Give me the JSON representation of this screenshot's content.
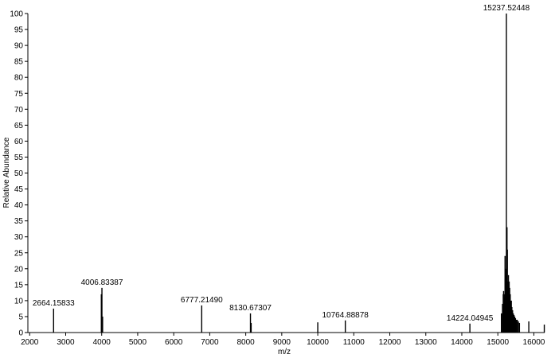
{
  "chart_data": {
    "type": "bar",
    "title": "",
    "xlabel": "m/z",
    "ylabel": "Relative Abundance",
    "xlim": [
      1950,
      16300
    ],
    "ylim": [
      0,
      100
    ],
    "xticks": [
      2000,
      3000,
      4000,
      5000,
      6000,
      7000,
      8000,
      9000,
      10000,
      11000,
      12000,
      13000,
      14000,
      15000,
      16000
    ],
    "yticks": [
      0,
      5,
      10,
      15,
      20,
      25,
      30,
      35,
      40,
      45,
      50,
      55,
      60,
      65,
      70,
      75,
      80,
      85,
      90,
      95,
      100
    ],
    "grid": false,
    "series": [
      {
        "x": [
          2664.15833,
          4006.83387,
          3990,
          4025,
          6777.2149,
          8130.67307,
          8150,
          10000,
          10764.88878,
          14224.04945,
          15100,
          15130,
          15150,
          15160,
          15170,
          15180,
          15190,
          15200,
          15210,
          15220,
          15230,
          15237.52448,
          15245,
          15255,
          15265,
          15275,
          15285,
          15295,
          15305,
          15315,
          15330,
          15345,
          15360,
          15375,
          15390,
          15410,
          15430,
          15450,
          15470,
          15490,
          15510,
          15540,
          15570,
          15600,
          15860,
          16290
        ],
        "y": [
          7.5,
          14,
          12,
          5,
          8.5,
          6,
          3,
          3.2,
          3.8,
          2.8,
          6,
          9,
          12,
          13,
          12,
          11,
          10,
          24,
          20,
          12,
          18,
          100,
          20,
          33,
          26,
          16,
          14,
          18,
          12,
          16,
          14,
          12,
          8,
          10,
          8,
          7,
          6,
          5.5,
          5,
          4.5,
          4,
          4,
          3.5,
          3,
          3.5,
          2.5
        ]
      }
    ],
    "peak_labels": [
      {
        "x": 2664.15833,
        "y": 7.5,
        "text": "2664.15833"
      },
      {
        "x": 4006.83387,
        "y": 14,
        "text": "4006.83387"
      },
      {
        "x": 6777.2149,
        "y": 8.5,
        "text": "6777.21490"
      },
      {
        "x": 8130.67307,
        "y": 6,
        "text": "8130.67307"
      },
      {
        "x": 10764.88878,
        "y": 3.8,
        "text": "10764.88878"
      },
      {
        "x": 14224.04945,
        "y": 2.8,
        "text": "14224.04945"
      },
      {
        "x": 15237.52448,
        "y": 100,
        "text": "15237.52448"
      }
    ]
  }
}
